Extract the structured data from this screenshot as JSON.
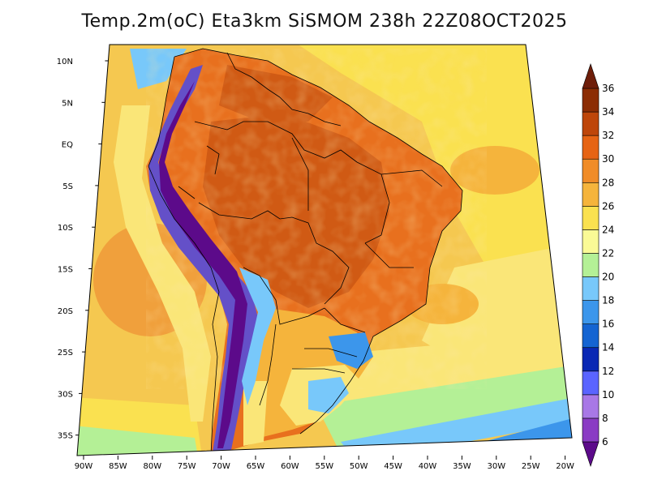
{
  "title": "Temp.2m(oC) Eta3km SiSMOM 238h 22Z08OCT2025",
  "map": {
    "lat_labels": [
      "10N",
      "5N",
      "EQ",
      "5S",
      "10S",
      "15S",
      "20S",
      "25S",
      "30S",
      "35S"
    ],
    "lon_labels": [
      "90W",
      "85W",
      "80W",
      "75W",
      "70W",
      "65W",
      "60W",
      "55W",
      "50W",
      "45W",
      "40W",
      "35W",
      "30W",
      "25W",
      "20W"
    ],
    "lat_range": [
      -38,
      11.5
    ],
    "lon_range": [
      -90.5,
      -19.5
    ]
  },
  "colorbar": {
    "levels": [
      6,
      8,
      10,
      12,
      14,
      16,
      18,
      20,
      22,
      24,
      26,
      28,
      30,
      32,
      34,
      36
    ],
    "labels": [
      "6",
      "8",
      "10",
      "12",
      "14",
      "16",
      "18",
      "20",
      "22",
      "24",
      "26",
      "28",
      "30",
      "32",
      "34",
      "36"
    ],
    "colors": [
      "#5c0a8a",
      "#8a3cc4",
      "#a878e6",
      "#5a64ff",
      "#0a28b4",
      "#1464d2",
      "#3c96eb",
      "#78c8fa",
      "#b4f096",
      "#fafa96",
      "#fae150",
      "#f5b43c",
      "#f08c28",
      "#e66414",
      "#be460a",
      "#8c2d04",
      "#6e1e0a"
    ]
  },
  "palette": {
    "ocean_warm": "#f0a03c",
    "ocean_mid": "#f5c850",
    "ocean_cool": "#fae150",
    "ocean_cold": "#c8f08c",
    "land_hot": "#e8701e",
    "land_very_hot": "#d05a14",
    "andes_cold": "#6450c8",
    "border": "#000000"
  }
}
